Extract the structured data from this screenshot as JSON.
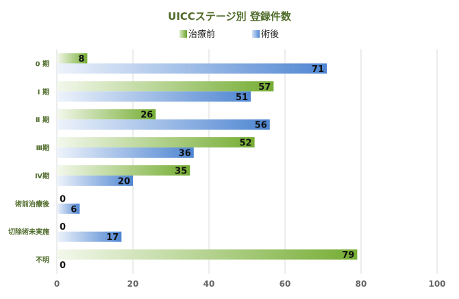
{
  "chart_data": {
    "type": "bar",
    "orientation": "horizontal",
    "title": "UICCステージ別 登録件数",
    "categories": [
      "0 期",
      "Ⅰ 期",
      "Ⅱ 期",
      "Ⅲ期",
      "Ⅳ期",
      "術前治療後",
      "切除術未実施",
      "不明"
    ],
    "series": [
      {
        "name": "治療前",
        "values": [
          8,
          57,
          26,
          52,
          35,
          0,
          0,
          79
        ],
        "color": "#7bb03a"
      },
      {
        "name": "術後",
        "values": [
          71,
          51,
          56,
          36,
          20,
          6,
          17,
          0
        ],
        "color": "#5b8fd6"
      }
    ],
    "xlim": [
      0,
      100
    ],
    "xticks": [
      0,
      20,
      40,
      60,
      80,
      100
    ],
    "grid": true,
    "legend_position": "top"
  }
}
